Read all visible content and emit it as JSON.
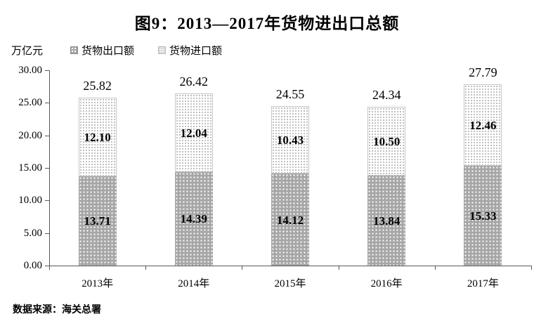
{
  "chart_data": {
    "type": "bar",
    "stacked": true,
    "title": "图9：2013—2017年货物进出口总额",
    "unit": "万亿元",
    "categories": [
      "2013年",
      "2014年",
      "2015年",
      "2016年",
      "2017年"
    ],
    "series": [
      {
        "name": "货物出口额",
        "values": [
          13.71,
          14.39,
          14.12,
          13.84,
          15.33
        ]
      },
      {
        "name": "货物进口额",
        "values": [
          12.1,
          12.04,
          10.43,
          10.5,
          12.46
        ]
      }
    ],
    "totals": [
      25.82,
      26.42,
      24.55,
      24.34,
      27.79
    ],
    "ylim": [
      0,
      30
    ],
    "ytick_step": 5,
    "ytick_labels": [
      "0.00",
      "5.00",
      "10.00",
      "15.00",
      "20.00",
      "25.00",
      "30.00"
    ],
    "grid": false,
    "legend_position": "top-left",
    "source": "数据来源：海关总署",
    "colors": {
      "export_fill": "#a6a6a6",
      "export_dot": "#ffffff",
      "import_fill": "#ffffff",
      "import_dot": "#ababab",
      "axis": "#595959",
      "text": "#000000"
    }
  }
}
